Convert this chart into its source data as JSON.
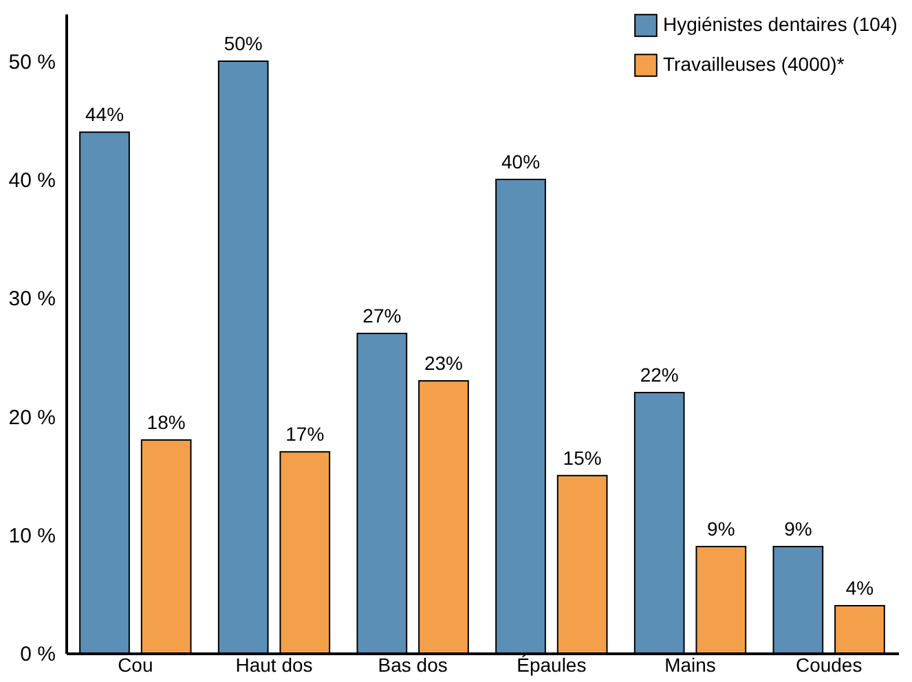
{
  "chart_data": {
    "type": "bar",
    "categories": [
      "Cou",
      "Haut dos",
      "Bas dos",
      "Épaules",
      "Mains",
      "Coudes"
    ],
    "series": [
      {
        "name": "Hygiénistes dentaires (104)",
        "color": "#5b8fb5",
        "values": [
          44,
          50,
          27,
          40,
          22,
          9
        ],
        "value_labels": [
          "44%",
          "50%",
          "27%",
          "40%",
          "22%",
          "9%"
        ]
      },
      {
        "name": "Travailleuses (4000)*",
        "color": "#f4a04a",
        "values": [
          18,
          17,
          23,
          15,
          9,
          4
        ],
        "value_labels": [
          "18%",
          "17%",
          "23%",
          "15%",
          "9%",
          "4%"
        ]
      }
    ],
    "ylim": [
      0,
      54
    ],
    "yticks": [
      {
        "value": 0,
        "label": "0 %"
      },
      {
        "value": 10,
        "label": "10 %"
      },
      {
        "value": 20,
        "label": "20 %"
      },
      {
        "value": 30,
        "label": "30 %"
      },
      {
        "value": 40,
        "label": "40 %"
      },
      {
        "value": 50,
        "label": "50 %"
      }
    ],
    "legend": "top right"
  }
}
